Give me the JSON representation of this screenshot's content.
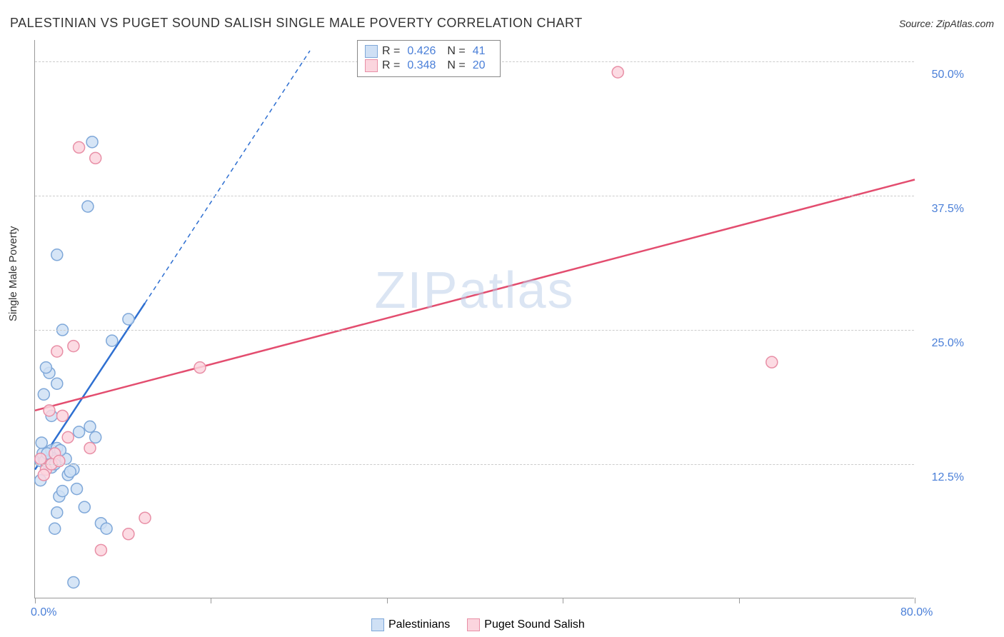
{
  "title": "PALESTINIAN VS PUGET SOUND SALISH SINGLE MALE POVERTY CORRELATION CHART",
  "source_label": "Source: ",
  "source_name": "ZipAtlas.com",
  "y_axis_label": "Single Male Poverty",
  "watermark": "ZIPatlas",
  "chart": {
    "type": "scatter",
    "background_color": "#ffffff",
    "grid_color": "#cccccc",
    "axis_color": "#999999",
    "tick_label_color": "#4a7fd8",
    "xlim": [
      0,
      80
    ],
    "ylim": [
      0,
      52
    ],
    "x_ticks": [
      0,
      16,
      32,
      48,
      64,
      80
    ],
    "x_tick_labels": {
      "0": "0.0%",
      "80": "80.0%"
    },
    "y_gridlines": [
      12.5,
      25.0,
      37.5,
      50.0
    ],
    "y_tick_labels": [
      "12.5%",
      "25.0%",
      "37.5%",
      "50.0%"
    ],
    "marker_radius": 8,
    "marker_stroke_width": 1.5,
    "series": [
      {
        "name": "Palestinians",
        "fill": "#cfe0f5",
        "stroke": "#7fa8d9",
        "R": "0.426",
        "N": "41",
        "points": [
          [
            0.5,
            12.8
          ],
          [
            0.8,
            13.0
          ],
          [
            1.0,
            13.2
          ],
          [
            1.2,
            12.5
          ],
          [
            0.7,
            13.5
          ],
          [
            1.5,
            13.8
          ],
          [
            0.6,
            14.5
          ],
          [
            1.8,
            6.5
          ],
          [
            2.0,
            8.0
          ],
          [
            2.2,
            9.5
          ],
          [
            2.5,
            10.0
          ],
          [
            3.0,
            11.5
          ],
          [
            3.5,
            12.0
          ],
          [
            1.3,
            21.0
          ],
          [
            1.5,
            17.0
          ],
          [
            2.0,
            14.0
          ],
          [
            2.8,
            13.0
          ],
          [
            3.2,
            11.8
          ],
          [
            3.8,
            10.2
          ],
          [
            4.5,
            8.5
          ],
          [
            6.0,
            7.0
          ],
          [
            6.5,
            6.5
          ],
          [
            3.5,
            1.5
          ],
          [
            4.0,
            15.5
          ],
          [
            5.5,
            15.0
          ],
          [
            2.0,
            20.0
          ],
          [
            1.0,
            21.5
          ],
          [
            0.8,
            19.0
          ],
          [
            2.5,
            25.0
          ],
          [
            2.0,
            32.0
          ],
          [
            5.2,
            42.5
          ],
          [
            4.8,
            36.5
          ],
          [
            7.0,
            24.0
          ],
          [
            8.5,
            26.0
          ],
          [
            1.5,
            12.2
          ],
          [
            0.9,
            12.8
          ],
          [
            1.1,
            13.5
          ],
          [
            0.5,
            11.0
          ],
          [
            1.8,
            12.5
          ],
          [
            2.3,
            13.8
          ],
          [
            5.0,
            16.0
          ]
        ],
        "trend": {
          "x1": 0,
          "y1": 12.0,
          "x2": 10,
          "y2": 27.5,
          "extend_x": 25,
          "extend_y": 51.0,
          "color": "#2e6fd1",
          "width": 2.5
        }
      },
      {
        "name": "Puget Sound Salish",
        "fill": "#fbd5de",
        "stroke": "#e88fa6",
        "R": "0.348",
        "N": "20",
        "points": [
          [
            0.5,
            13.0
          ],
          [
            1.0,
            12.0
          ],
          [
            1.5,
            12.5
          ],
          [
            0.8,
            11.5
          ],
          [
            1.3,
            17.5
          ],
          [
            2.5,
            17.0
          ],
          [
            3.0,
            15.0
          ],
          [
            5.0,
            14.0
          ],
          [
            2.0,
            23.0
          ],
          [
            3.5,
            23.5
          ],
          [
            4.0,
            42.0
          ],
          [
            5.5,
            41.0
          ],
          [
            8.5,
            6.0
          ],
          [
            6.0,
            4.5
          ],
          [
            10.0,
            7.5
          ],
          [
            15.0,
            21.5
          ],
          [
            53.0,
            49.0
          ],
          [
            67.0,
            22.0
          ],
          [
            1.8,
            13.5
          ],
          [
            2.2,
            12.8
          ]
        ],
        "trend": {
          "x1": 0,
          "y1": 17.5,
          "x2": 80,
          "y2": 39.0,
          "color": "#e34d6f",
          "width": 2.5
        }
      }
    ]
  },
  "legend_top": {
    "border_color": "#888888"
  },
  "legend_bottom": {
    "items": [
      "Palestinians",
      "Puget Sound Salish"
    ]
  }
}
